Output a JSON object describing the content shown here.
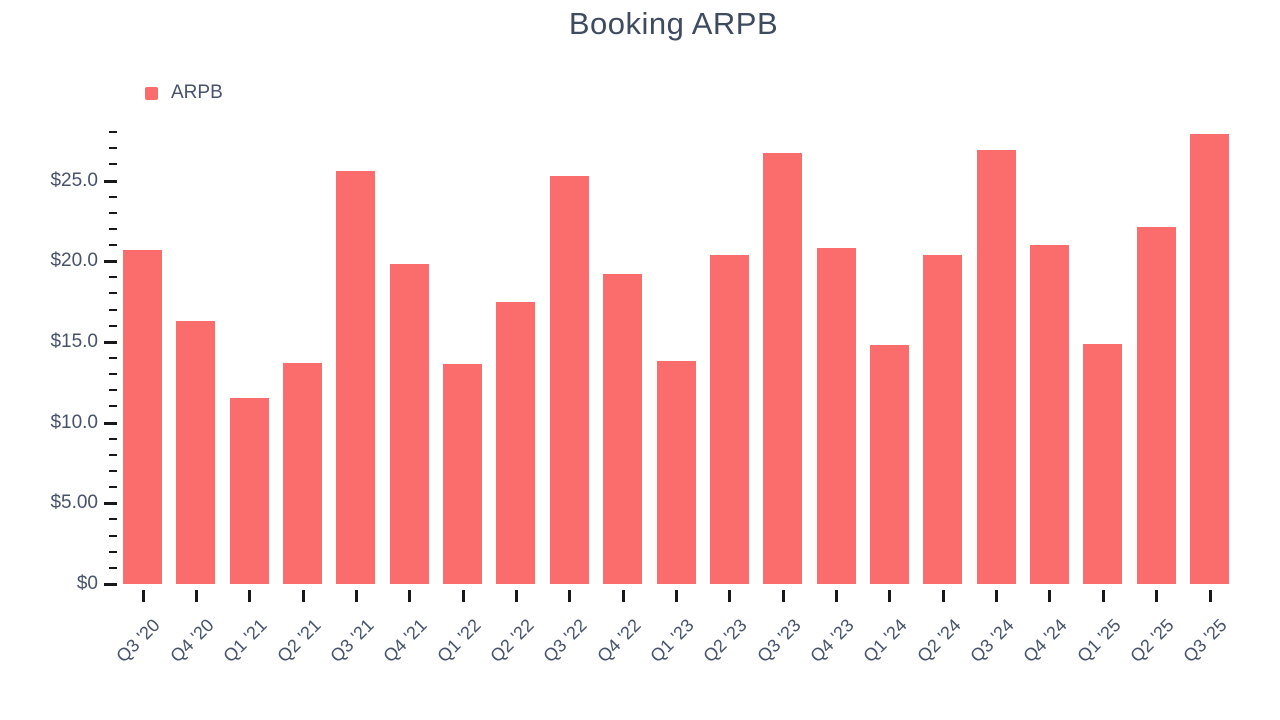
{
  "title": "Booking ARPB",
  "colors": {
    "bar": "#fb6d6d",
    "title_text": "#3e4a5e",
    "axis_text": "#47526a",
    "tick": "#16181c",
    "background": "#ffffff"
  },
  "chart_data": {
    "type": "bar",
    "title": "Booking ARPB",
    "xlabel": "",
    "ylabel": "",
    "grid": false,
    "legend_position": "top-left",
    "ylim": [
      0,
      28.1
    ],
    "categories": [
      "Q3 '20",
      "Q4 '20",
      "Q1 '21",
      "Q2 '21",
      "Q3 '21",
      "Q4 '21",
      "Q1 '22",
      "Q2 '22",
      "Q3 '22",
      "Q4 '22",
      "Q1 '23",
      "Q2 '23",
      "Q3 '23",
      "Q4 '23",
      "Q1 '24",
      "Q2 '24",
      "Q3 '24",
      "Q4 '24",
      "Q1 '25",
      "Q2 '25",
      "Q3 '25"
    ],
    "series": [
      {
        "name": "ARPB",
        "color": "#fb6d6d",
        "values": [
          20.7,
          16.3,
          11.5,
          13.7,
          25.6,
          19.8,
          13.6,
          17.5,
          25.3,
          19.2,
          13.8,
          20.4,
          26.7,
          20.8,
          14.8,
          20.4,
          26.9,
          21.0,
          14.9,
          22.1,
          27.9
        ]
      }
    ],
    "y_ticks": {
      "min": 0,
      "max": 28,
      "step": 1,
      "major_every": 5,
      "labels": [
        {
          "value": 0,
          "label": "$0"
        },
        {
          "value": 5,
          "label": "$5.00"
        },
        {
          "value": 10,
          "label": "$10.0"
        },
        {
          "value": 15,
          "label": "$15.0"
        },
        {
          "value": 20,
          "label": "$20.0"
        },
        {
          "value": 25,
          "label": "$25.0"
        }
      ]
    }
  }
}
